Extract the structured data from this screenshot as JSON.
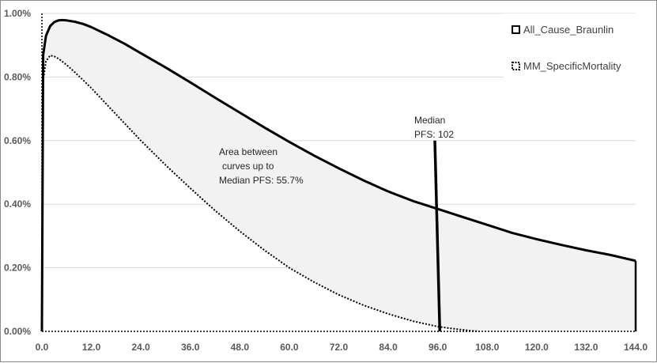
{
  "chart_data": {
    "type": "area",
    "title": "",
    "xlabel": "",
    "ylabel": "",
    "x_ticks": [
      "0.0",
      "12.0",
      "24.0",
      "36.0",
      "48.0",
      "60.0",
      "72.0",
      "84.0",
      "96.0",
      "108.0",
      "120.0",
      "132.0",
      "144.0"
    ],
    "y_ticks": [
      "0.00%",
      "0.20%",
      "0.40%",
      "0.60%",
      "0.80%",
      "1.00%"
    ],
    "xlim": [
      0,
      144
    ],
    "ylim": [
      0,
      1.0
    ],
    "grid": "horizontal",
    "legend_position": "top-right",
    "series": [
      {
        "name": "All_Cause_Braunlin",
        "style": "solid",
        "color": "#000000",
        "x": [
          0,
          0.3,
          1,
          2,
          3,
          4,
          5,
          6,
          8,
          10,
          12,
          16,
          20,
          24,
          30,
          36,
          42,
          48,
          54,
          60,
          66,
          72,
          78,
          84,
          90,
          96,
          102,
          108,
          114,
          120,
          126,
          132,
          138,
          144
        ],
        "y": [
          0,
          0.87,
          0.93,
          0.96,
          0.973,
          0.978,
          0.979,
          0.978,
          0.974,
          0.967,
          0.957,
          0.932,
          0.905,
          0.875,
          0.83,
          0.783,
          0.735,
          0.688,
          0.641,
          0.596,
          0.553,
          0.513,
          0.475,
          0.44,
          0.41,
          0.385,
          0.36,
          0.335,
          0.31,
          0.29,
          0.272,
          0.255,
          0.24,
          0.222
        ]
      },
      {
        "name": "MM_SpecificMortality",
        "style": "dotted",
        "color": "#000000",
        "x": [
          0,
          0.3,
          1,
          2,
          3,
          4,
          6,
          8,
          10,
          12,
          16,
          20,
          24,
          30,
          36,
          42,
          48,
          54,
          60,
          66,
          72,
          78,
          84,
          90,
          96,
          100,
          104,
          106
        ],
        "y": [
          0,
          0.79,
          0.85,
          0.868,
          0.865,
          0.858,
          0.838,
          0.815,
          0.79,
          0.765,
          0.71,
          0.655,
          0.6,
          0.523,
          0.45,
          0.38,
          0.315,
          0.255,
          0.2,
          0.155,
          0.115,
          0.082,
          0.055,
          0.032,
          0.015,
          0.008,
          0.002,
          0
        ]
      }
    ],
    "shaded_region": {
      "between": [
        "All_Cause_Braunlin",
        "MM_SpecificMortality"
      ],
      "color": "#f2f2f2"
    },
    "median_line": {
      "top": {
        "x": 95.3,
        "y": 0.6
      },
      "bottom": {
        "x": 96.5,
        "y": 0.0
      }
    },
    "annotations": {
      "median": [
        "Median",
        "PFS: 102"
      ],
      "area": [
        "Area between",
        "curves up to",
        "Median PFS: 55.7%"
      ]
    }
  }
}
